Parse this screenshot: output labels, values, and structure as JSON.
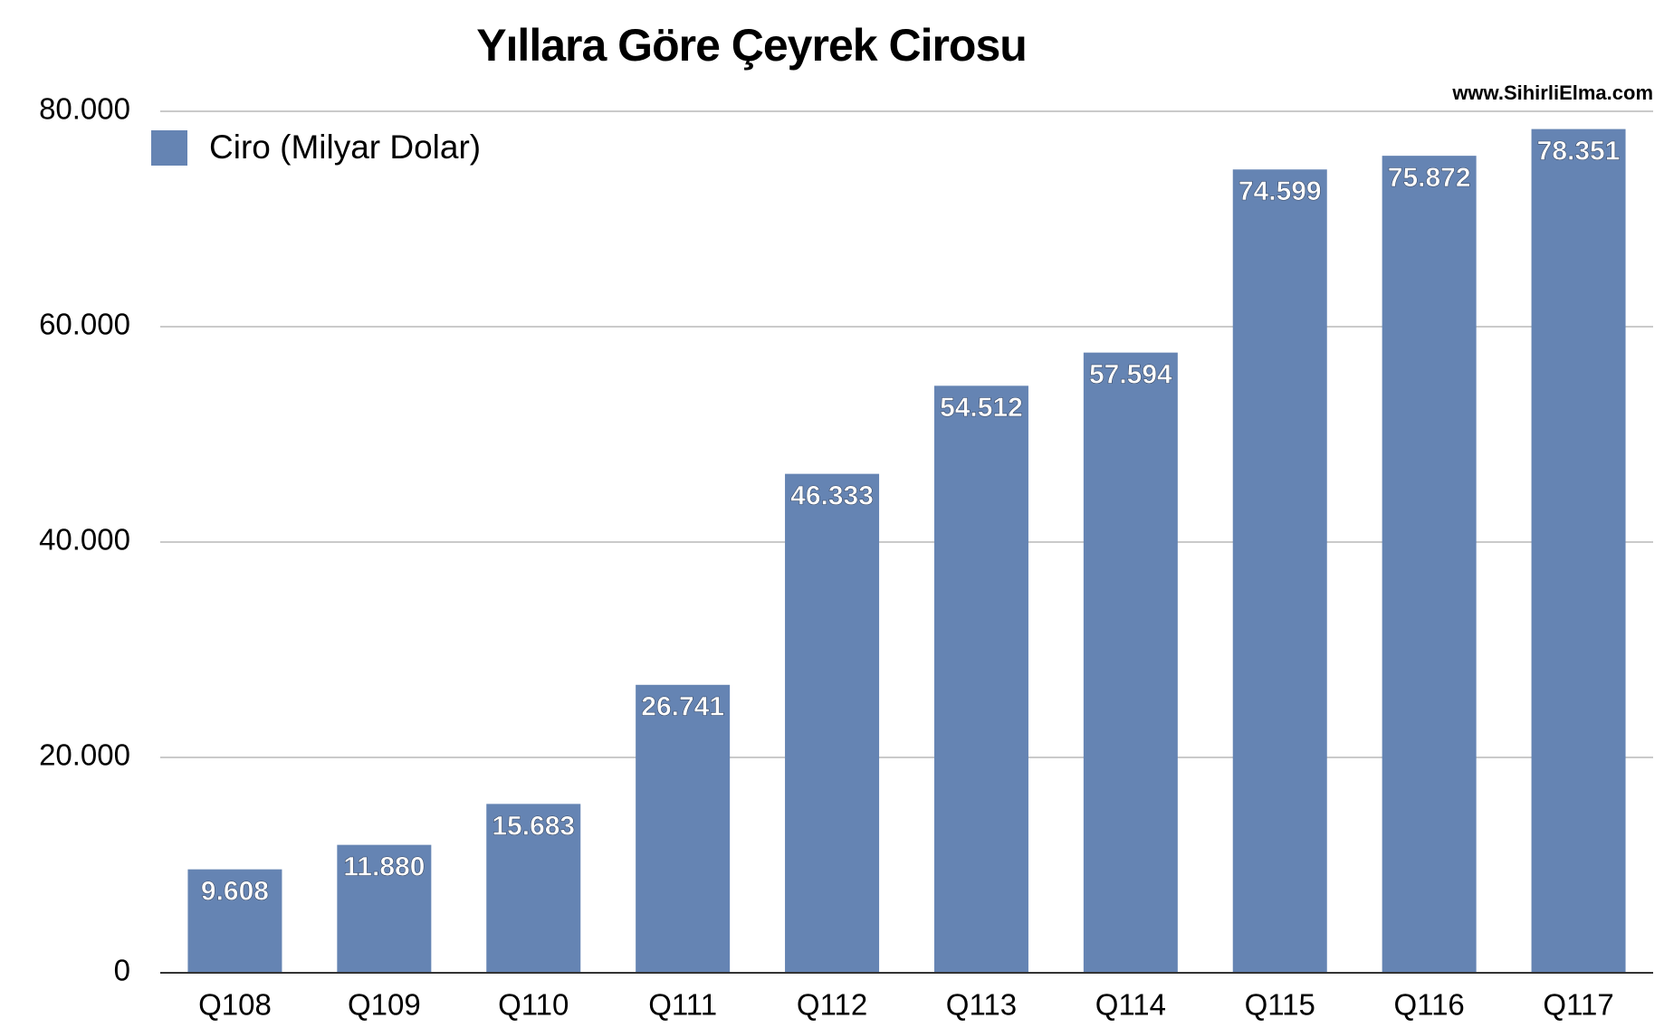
{
  "chart_data": {
    "type": "bar",
    "title": "Yıllara Göre Çeyrek Cirosu",
    "watermark": "www.SihirliElma.com",
    "categories": [
      "Q108",
      "Q109",
      "Q110",
      "Q111",
      "Q112",
      "Q113",
      "Q114",
      "Q115",
      "Q116",
      "Q117"
    ],
    "series": [
      {
        "name": "Ciro (Milyar Dolar)",
        "color": "#6584b3",
        "values": [
          9.608,
          11.88,
          15.683,
          26.741,
          46.333,
          54.512,
          57.594,
          74.599,
          75.872,
          78.351
        ],
        "value_labels": [
          "9.608",
          "11.880",
          "15.683",
          "26.741",
          "46.333",
          "54.512",
          "57.594",
          "74.599",
          "75.872",
          "78.351"
        ]
      }
    ],
    "ylim": [
      0,
      80
    ],
    "yticks": [
      0,
      {
        "value": 20,
        "label": "20.000"
      },
      {
        "value": 40,
        "label": "40.000"
      },
      {
        "value": 60,
        "label": "60.000"
      },
      {
        "value": 80,
        "label": "80.000"
      }
    ],
    "grid": true,
    "legend": "top-left"
  }
}
